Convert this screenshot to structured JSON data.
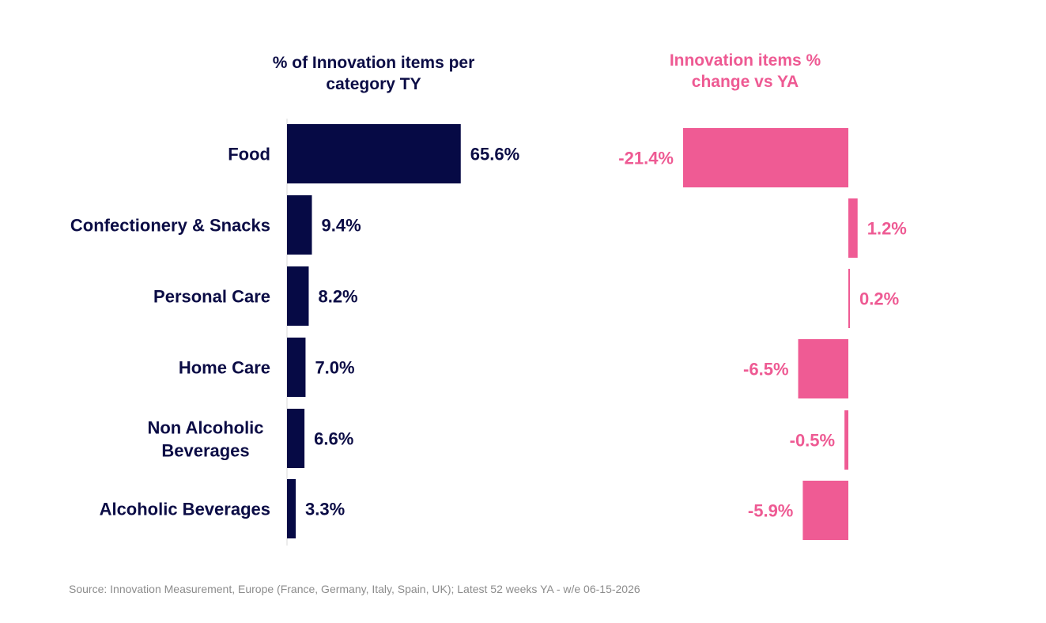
{
  "chart_data": [
    {
      "type": "bar",
      "orientation": "horizontal",
      "title": "% of Innovation items per category TY",
      "categories": [
        "Food",
        "Confectionery & Snacks",
        "Personal Care",
        "Home Care",
        "Non Alcoholic Beverages",
        "Alcoholic Beverages"
      ],
      "values": [
        65.6,
        9.4,
        8.2,
        7.0,
        6.6,
        3.3
      ],
      "value_labels": [
        "65.6%",
        "9.4%",
        "8.2%",
        "7.0%",
        "6.6%",
        "3.3%"
      ],
      "xlim": [
        0,
        100
      ],
      "color": "#060a45",
      "grid": false
    },
    {
      "type": "bar",
      "orientation": "horizontal",
      "title": "Innovation items % change vs YA",
      "categories": [
        "Food",
        "Confectionery & Snacks",
        "Personal Care",
        "Home Care",
        "Non Alcoholic Beverages",
        "Alcoholic Beverages"
      ],
      "values": [
        -21.4,
        1.2,
        0.2,
        -6.5,
        -0.5,
        -5.9
      ],
      "value_labels": [
        "-21.4%",
        "1.2%",
        "0.2%",
        "-6.5%",
        "-0.5%",
        "-5.9%"
      ],
      "xlim": [
        -25,
        5
      ],
      "color": "#ef5b94",
      "grid": false
    }
  ],
  "source": "Source: Innovation Measurement, Europe (France, Germany, Italy, Spain, UK); Latest 52 weeks YA - w/e 06-15-2026"
}
